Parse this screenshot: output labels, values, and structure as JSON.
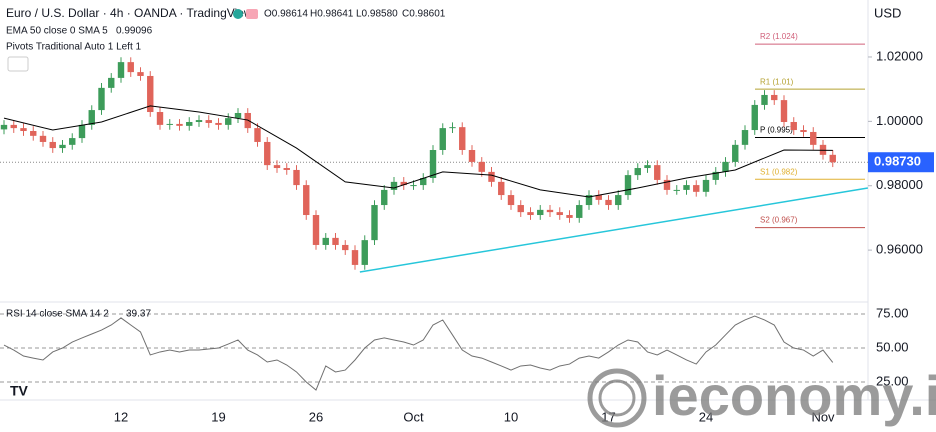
{
  "header": {
    "symbol": "Euro / U.S. Dollar · 4h · OANDA · TradingView",
    "ohlc": [
      "O0.98614",
      "H0.98641",
      "L0.98580",
      "C0.98601"
    ],
    "ema_legend": "EMA 50 close 0 SMA 5",
    "ema_value": "0.99096",
    "pivots_legend": "Pivots Traditional Auto 1 Left 1",
    "rsi_legend": "RSI 14 close SMA 14 2",
    "rsi_value": "39.37",
    "currency": "USD",
    "watermark": "ieconomy.io"
  },
  "chart_data": {
    "type": "candlestick",
    "categories": [
      null,
      null,
      null,
      null,
      null,
      null,
      null,
      null,
      null,
      null,
      null,
      null,
      "12",
      null,
      null,
      null,
      null,
      null,
      null,
      null,
      null,
      null,
      "19",
      null,
      null,
      null,
      null,
      null,
      null,
      null,
      null,
      null,
      "26",
      null,
      null,
      null,
      null,
      null,
      null,
      null,
      null,
      null,
      "Oct",
      null,
      null,
      null,
      null,
      null,
      null,
      null,
      null,
      null,
      "10",
      null,
      null,
      null,
      null,
      null,
      null,
      null,
      null,
      null,
      "17",
      null,
      null,
      null,
      null,
      null,
      null,
      null,
      null,
      null,
      "24",
      null,
      null,
      null,
      null,
      null,
      null,
      null,
      null,
      null,
      null,
      null,
      "Nov",
      null
    ],
    "open": [
      0.9975,
      0.9989,
      0.9979,
      0.997,
      0.9955,
      0.9936,
      0.9917,
      0.9927,
      0.9948,
      0.9989,
      1.0035,
      1.0104,
      1.0135,
      1.0184,
      1.0153,
      1.0141,
      1.0029,
      0.9989,
      0.9992,
      0.9986,
      0.9998,
      1.0004,
      0.9995,
      0.9989,
      1.001,
      1.0026,
      0.9979,
      0.9936,
      0.9864,
      0.9855,
      0.9849,
      0.9802,
      0.9709,
      0.9616,
      0.9638,
      0.9616,
      0.96,
      0.9554,
      0.9631,
      0.974,
      0.9787,
      0.9812,
      0.9802,
      0.9802,
      0.9824,
      0.9911,
      0.9979,
      0.9982,
      0.9911,
      0.9874,
      0.9843,
      0.9812,
      0.9771,
      0.974,
      0.9718,
      0.9709,
      0.9725,
      0.9718,
      0.9709,
      0.97,
      0.974,
      0.9771,
      0.9756,
      0.974,
      0.9771,
      0.9833,
      0.9855,
      0.9864,
      0.9818,
      0.9787,
      0.9787,
      0.9802,
      0.9781,
      0.9818,
      0.9843,
      0.9874,
      0.9927,
      0.9973,
      1.0051,
      1.0082,
      1.0066,
      0.9998,
      0.9973,
      0.9967,
      0.9927,
      0.9896
    ],
    "high": [
      1.0004,
      1.0004,
      0.9994,
      0.9985,
      0.997,
      0.9951,
      0.9942,
      0.9963,
      1.0004,
      1.005,
      1.0119,
      1.015,
      1.0199,
      1.0199,
      1.0168,
      1.0156,
      1.0044,
      1.0007,
      1.0007,
      1.0013,
      1.0019,
      1.0019,
      1.001,
      1.0025,
      1.0041,
      1.0041,
      0.9994,
      0.9951,
      0.9879,
      0.987,
      0.9864,
      0.9817,
      0.9724,
      0.9653,
      0.9653,
      0.9631,
      0.9615,
      0.9646,
      0.9755,
      0.9802,
      0.9827,
      0.9827,
      0.9817,
      0.9839,
      0.9926,
      0.9994,
      0.9997,
      0.9997,
      0.9926,
      0.9889,
      0.9858,
      0.9827,
      0.9786,
      0.9755,
      0.9733,
      0.974,
      0.974,
      0.9733,
      0.9724,
      0.9755,
      0.9786,
      0.9786,
      0.9771,
      0.9786,
      0.9848,
      0.987,
      0.9879,
      0.9879,
      0.9833,
      0.9802,
      0.9817,
      0.9817,
      0.9833,
      0.9858,
      0.9889,
      0.9942,
      0.9988,
      1.0066,
      1.0097,
      1.0097,
      1.0081,
      1.0013,
      0.9988,
      0.9982,
      0.9942,
      0.9911
    ],
    "low": [
      0.996,
      0.9964,
      0.9955,
      0.994,
      0.9921,
      0.9902,
      0.9902,
      0.9912,
      0.9933,
      0.9974,
      1.002,
      1.0089,
      1.012,
      1.0138,
      1.0126,
      1.0014,
      0.9974,
      0.9974,
      0.9971,
      0.9971,
      0.9983,
      0.998,
      0.9974,
      0.9974,
      0.9995,
      0.9964,
      0.9921,
      0.9849,
      0.984,
      0.9834,
      0.9787,
      0.9694,
      0.9601,
      0.9601,
      0.9601,
      0.9585,
      0.9539,
      0.9539,
      0.9616,
      0.9725,
      0.9772,
      0.9787,
      0.9787,
      0.9787,
      0.9809,
      0.9896,
      0.9964,
      0.9896,
      0.9859,
      0.9828,
      0.9797,
      0.9756,
      0.9725,
      0.9703,
      0.9694,
      0.9694,
      0.9703,
      0.9694,
      0.9685,
      0.9685,
      0.9725,
      0.9741,
      0.9725,
      0.9725,
      0.9756,
      0.9818,
      0.984,
      0.9803,
      0.9772,
      0.9772,
      0.9772,
      0.9766,
      0.9766,
      0.9803,
      0.9828,
      0.9859,
      0.9912,
      0.9958,
      1.0036,
      1.0051,
      0.9983,
      0.9958,
      0.9952,
      0.9912,
      0.9881,
      0.9858
    ],
    "close": [
      0.9989,
      0.9979,
      0.997,
      0.9955,
      0.9936,
      0.9917,
      0.9927,
      0.9948,
      0.9989,
      1.0035,
      1.0104,
      1.0135,
      1.0184,
      1.0153,
      1.0141,
      1.0029,
      0.9989,
      0.9992,
      0.9986,
      0.9998,
      1.0004,
      0.9995,
      0.9989,
      1.001,
      1.0026,
      0.9979,
      0.9936,
      0.9864,
      0.9855,
      0.9849,
      0.9802,
      0.9709,
      0.9616,
      0.9638,
      0.9616,
      0.96,
      0.9554,
      0.9631,
      0.974,
      0.9787,
      0.9812,
      0.9802,
      0.9802,
      0.9824,
      0.9911,
      0.9979,
      0.9982,
      0.9911,
      0.9874,
      0.9843,
      0.9812,
      0.9771,
      0.974,
      0.9718,
      0.9709,
      0.9725,
      0.9718,
      0.9709,
      0.97,
      0.974,
      0.9771,
      0.9756,
      0.974,
      0.9771,
      0.9833,
      0.9855,
      0.9864,
      0.9818,
      0.9787,
      0.9787,
      0.9802,
      0.9781,
      0.9818,
      0.9843,
      0.9874,
      0.9927,
      0.9973,
      1.0051,
      1.0082,
      1.0066,
      0.9998,
      0.9973,
      0.9967,
      0.9927,
      0.9896,
      0.9873
    ],
    "up_color": "#3d9c5a",
    "down_color": "#e0645a",
    "ylim": [
      0.9445,
      1.0377
    ],
    "yticks": [
      {
        "value": 0.96,
        "label": "0.96000"
      },
      {
        "value": 0.98,
        "label": "0.98000"
      },
      {
        "value": 1.0,
        "label": "1.00000"
      },
      {
        "value": 1.02,
        "label": "1.02000"
      }
    ],
    "last_price": {
      "value": 0.9873,
      "label": "0.98730",
      "color": "#2962ff"
    },
    "ema": {
      "color": "#000000",
      "x": [
        0,
        5,
        10,
        15,
        20,
        25,
        30,
        35,
        40,
        45,
        50,
        55,
        60,
        65,
        70,
        75,
        80,
        85
      ],
      "values": [
        1.001,
        0.9973,
        0.9998,
        1.0048,
        1.0029,
        1.0004,
        0.9917,
        0.9812,
        0.9793,
        0.9843,
        0.9833,
        0.9787,
        0.9765,
        0.9793,
        0.9824,
        0.9849,
        0.9911,
        0.991
      ]
    },
    "pivots": [
      {
        "label": "R2 (1.024)",
        "value": 1.024,
        "color": "#d0607a"
      },
      {
        "label": "R1 (1.01)",
        "value": 1.01,
        "color": "#b5a232"
      },
      {
        "label": "P (0.995)",
        "value": 0.995,
        "color": "#000000"
      },
      {
        "label": "S1 (0.982)",
        "value": 0.982,
        "color": "#e0b030"
      },
      {
        "label": "S2 (0.967)",
        "value": 0.967,
        "color": "#c0504d"
      }
    ],
    "trendline": {
      "color": "#26c6da",
      "x": [
        36.5,
        88.6
      ],
      "values": [
        0.9532,
        0.9793
      ]
    },
    "rsi": {
      "color": "#707070",
      "values": [
        52.2,
        48.5,
        44.1,
        42.6,
        41.2,
        47.1,
        50,
        54.4,
        57.4,
        60.3,
        63.2,
        66.9,
        72.1,
        66.9,
        61.8,
        44.9,
        47.1,
        48.5,
        47.1,
        48.5,
        48.5,
        49.3,
        50,
        52.9,
        55.9,
        48.5,
        44.9,
        39.7,
        41.2,
        37.5,
        32.4,
        25,
        19.1,
        36.8,
        32.4,
        33.8,
        41.2,
        50,
        55.9,
        57.4,
        55.9,
        54.4,
        52.2,
        55.9,
        66.9,
        70.6,
        59.6,
        48.5,
        44.1,
        42.6,
        39.7,
        36.8,
        33.8,
        36.8,
        37.5,
        35.3,
        33.8,
        36.8,
        38.2,
        42.6,
        44.1,
        42.6,
        47.1,
        52.2,
        55.9,
        54.4,
        47.1,
        44.9,
        48.5,
        44.9,
        41.2,
        38.2,
        47.1,
        52.2,
        59.6,
        66.9,
        70.6,
        73.5,
        70.6,
        66.9,
        54.4,
        50,
        48.5,
        44.1,
        48.5,
        39.4
      ],
      "ylim": [
        11.8,
        83.8
      ],
      "yticks": [
        {
          "value": 25,
          "label": "25.00"
        },
        {
          "value": 50,
          "label": "50.00"
        },
        {
          "value": 75,
          "label": "75.00"
        }
      ]
    }
  }
}
